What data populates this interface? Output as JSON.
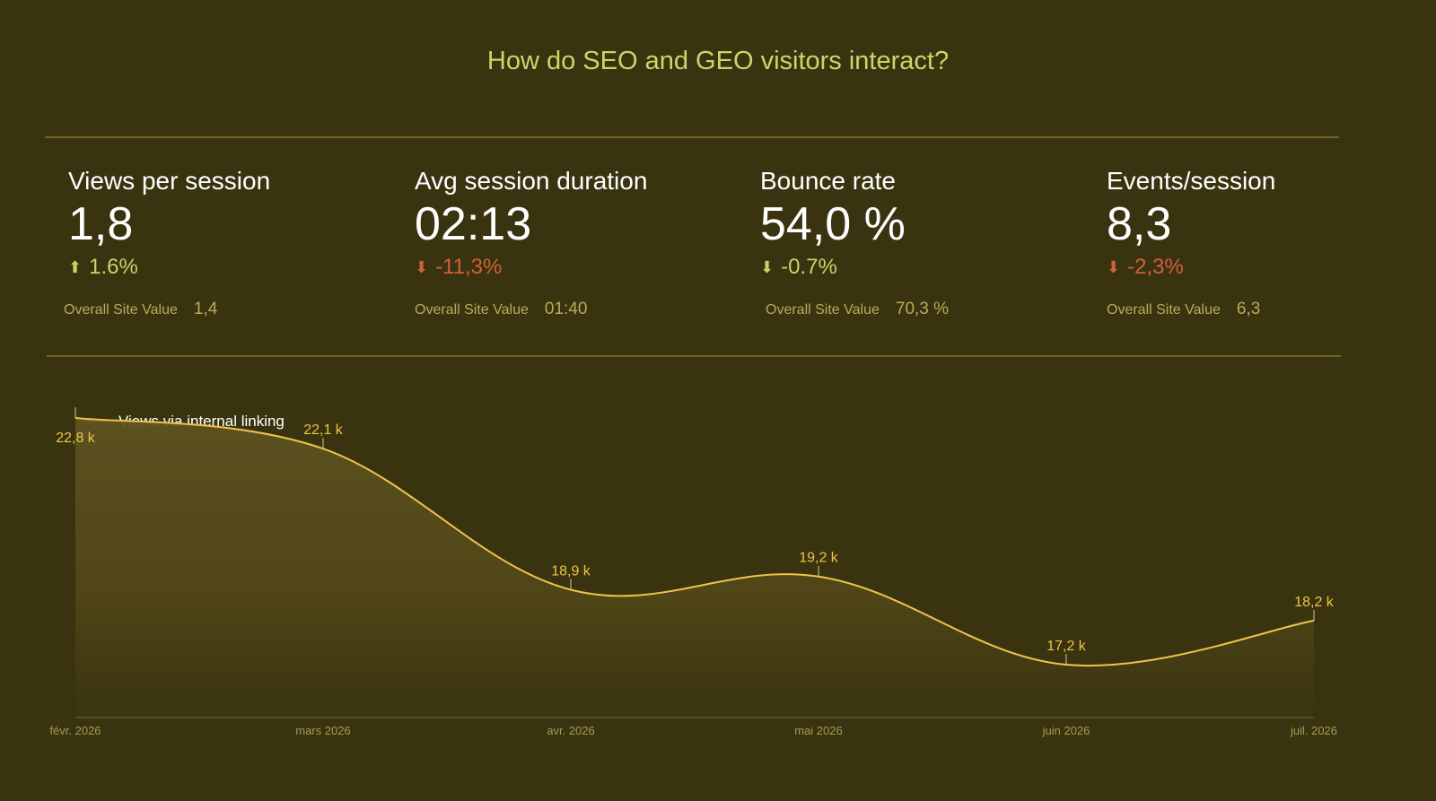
{
  "header": {
    "title": "How do SEO and GEO visitors interact?"
  },
  "kpis": [
    {
      "label": "Views per session",
      "value": "1,8",
      "change": "1.6%",
      "direction": "up",
      "overall_label": "Overall Site Value",
      "overall_value": "1,4"
    },
    {
      "label": "Avg session duration",
      "value": "02:13",
      "change": "-11,3%",
      "direction": "down",
      "overall_label": "Overall Site Value",
      "overall_value": "01:40"
    },
    {
      "label": "Bounce rate",
      "value": "54,0 %",
      "change": "-0.7%",
      "direction": "up",
      "overall_label": "Overall Site Value",
      "overall_value": "70,3 %"
    },
    {
      "label": "Events/session",
      "value": "8,3",
      "change": "-2,3%",
      "direction": "down",
      "overall_label": "Overall Site Value",
      "overall_value": "6,3"
    }
  ],
  "colors": {
    "background": "#39340f",
    "title": "#cfd36a",
    "positive": "#c9d36a",
    "negative": "#d25f3b",
    "line": "#f0c34a",
    "axis": "#6e6822"
  },
  "chart_data": {
    "type": "area",
    "categories": [
      "févr. 2026",
      "mars 2026",
      "avr. 2026",
      "mai 2026",
      "juin 2026",
      "juil. 2026"
    ],
    "series": [
      {
        "name": "Views via internal linking",
        "values": [
          22800,
          22100,
          18900,
          19200,
          17200,
          18200
        ]
      }
    ],
    "data_labels": [
      "22,8 k",
      "22,1 k",
      "18,9 k",
      "19,2 k",
      "17,2 k",
      "18,2 k"
    ],
    "ylim": [
      16000,
      23000
    ],
    "legend": "top-left",
    "grid": false,
    "title": "",
    "xlabel": "",
    "ylabel": ""
  }
}
